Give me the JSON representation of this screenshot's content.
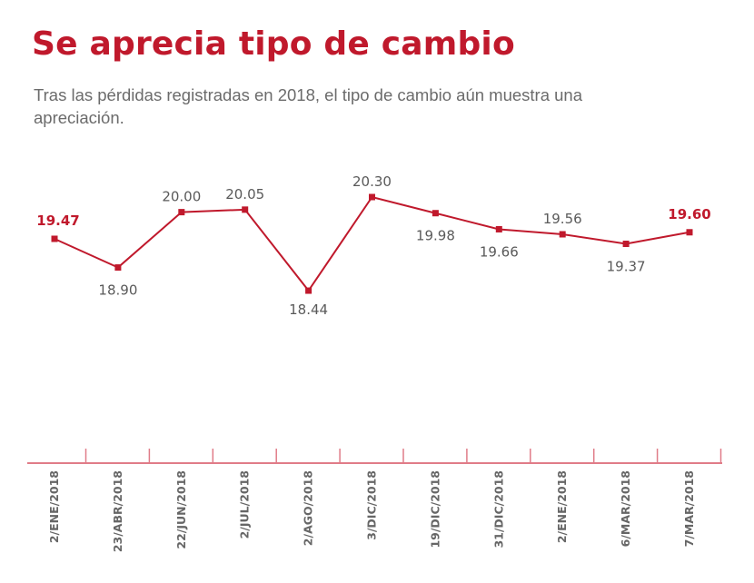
{
  "title": "Se aprecia tipo de cambio",
  "subtitle": "Tras las pérdidas registradas en 2018, el tipo de cambio aún muestra una apreciación.",
  "colors": {
    "line": "#c0192c",
    "axis": "#e07c88",
    "label": "#5a5a5a",
    "highlight": "#c0192c"
  },
  "chart_data": {
    "type": "line",
    "title": "Se aprecia tipo de cambio",
    "xlabel": "",
    "ylabel": "",
    "categories": [
      "2/ENE/2018",
      "23/ABR/2018",
      "22/JUN/2018",
      "2/JUL/2018",
      "2/AGO/2018",
      "3/DIC/2018",
      "19/DIC/2018",
      "31/DIC/2018",
      "2/ENE/2018",
      "6/MAR/2018",
      "7/MAR/2018"
    ],
    "values": [
      19.47,
      18.9,
      20.0,
      20.05,
      18.44,
      20.3,
      19.98,
      19.66,
      19.56,
      19.37,
      19.6
    ],
    "data_labels": [
      "19.47",
      "18.90",
      "20.00",
      "20.05",
      "18.44",
      "20.30",
      "19.98",
      "19.66",
      "19.56",
      "19.37",
      "19.60"
    ],
    "label_side": [
      "above",
      "below",
      "above",
      "above",
      "below",
      "above",
      "below",
      "below",
      "above",
      "below",
      "above"
    ],
    "highlighted": [
      0,
      10
    ],
    "grid": false,
    "legend": "none"
  }
}
